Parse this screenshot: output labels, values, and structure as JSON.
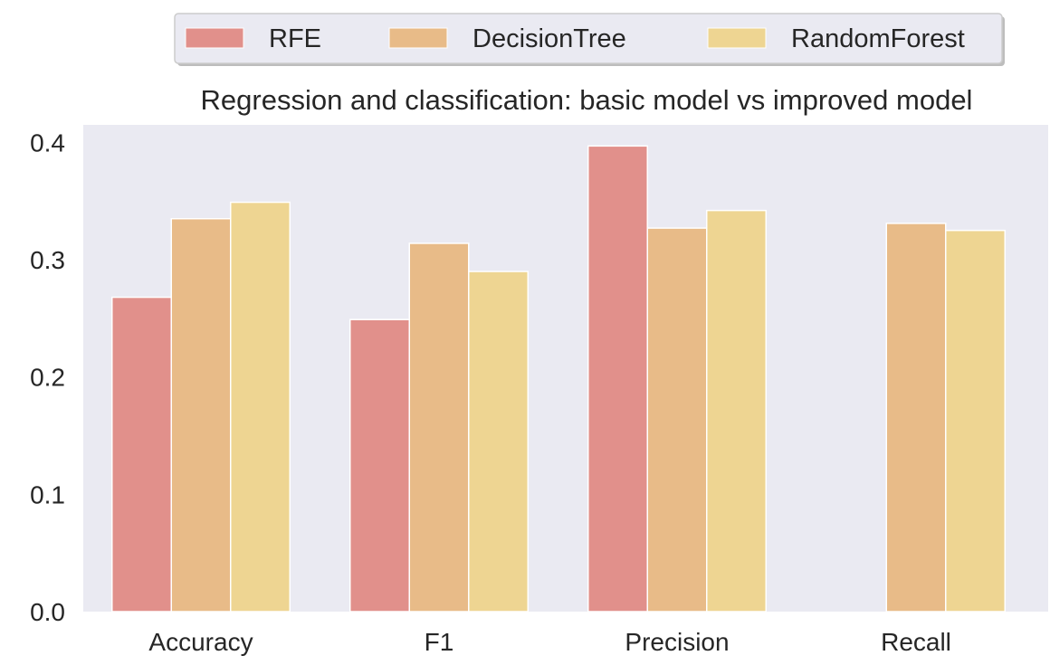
{
  "chart_data": {
    "type": "bar",
    "title": "Regression and classification: basic model vs improved model",
    "xlabel": "",
    "ylabel": "",
    "categories": [
      "Accuracy",
      "F1",
      "Precision",
      "Recall"
    ],
    "series": [
      {
        "name": "RFE",
        "values": [
          0.268,
          0.249,
          0.397,
          0.0
        ]
      },
      {
        "name": "DecisionTree",
        "values": [
          0.335,
          0.314,
          0.327,
          0.331
        ]
      },
      {
        "name": "RandomForest",
        "values": [
          0.349,
          0.29,
          0.342,
          0.325
        ]
      }
    ],
    "colors": [
      "#e1908b",
      "#e8bb88",
      "#eed592"
    ],
    "ylim": [
      0,
      0.415
    ],
    "yticks": [
      0.0,
      0.1,
      0.2,
      0.3,
      0.4
    ],
    "ytick_labels": [
      "0.0",
      "0.1",
      "0.2",
      "0.3",
      "0.4"
    ],
    "grid": false,
    "legend_position": "top-center"
  }
}
